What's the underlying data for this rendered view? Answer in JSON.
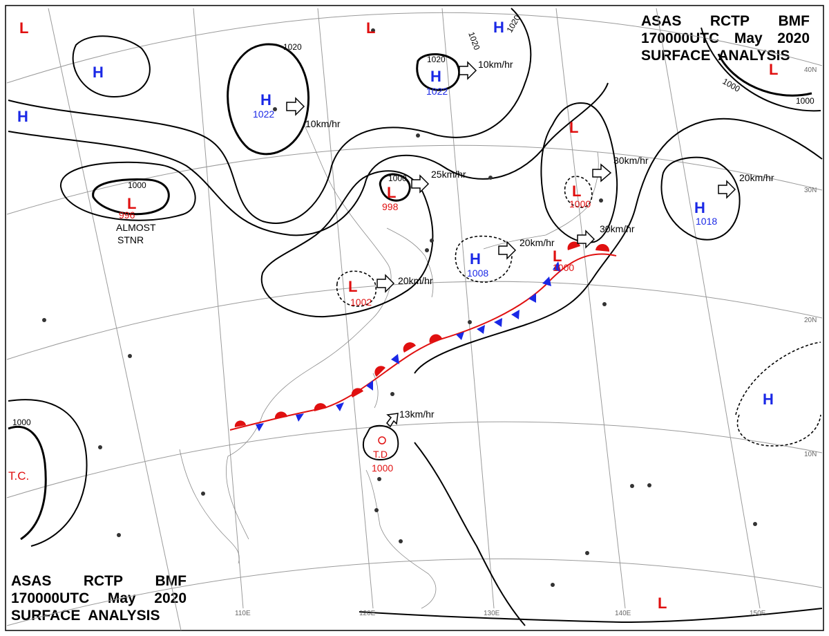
{
  "titles": {
    "top": {
      "line1": [
        "ASAS",
        "RCTP",
        "BMF"
      ],
      "line2": [
        "170000UTC",
        "May",
        "2020"
      ],
      "line3": "SURFACE  ANALYSIS"
    },
    "bottom": {
      "line1": [
        "ASAS",
        "RCTP",
        "BMF"
      ],
      "line2": [
        "170000UTC",
        "May",
        "2020"
      ],
      "line3": "SURFACE  ANALYSIS"
    }
  },
  "longitude_labels": [
    "110E",
    "120E",
    "130E",
    "140E",
    "150E"
  ],
  "latitude_labels": [
    "40N",
    "30N",
    "20N",
    "10N"
  ],
  "pressure_centers": {
    "high_a": {
      "symbol": "H",
      "value": "1022"
    },
    "high_b": {
      "symbol": "H",
      "value": "1022"
    },
    "high_c": {
      "symbol": "H",
      "value": "1008"
    },
    "high_d": {
      "symbol": "H",
      "value": "1018"
    },
    "low_a": {
      "symbol": "L",
      "value": "996"
    },
    "low_b": {
      "symbol": "L",
      "value": "998"
    },
    "low_c": {
      "symbol": "L",
      "value": "1002"
    },
    "low_d": {
      "symbol": "L",
      "value": "1000"
    },
    "low_e": {
      "symbol": "L",
      "value": "1000"
    },
    "td": {
      "symbol": "T.D",
      "value": "1000"
    },
    "tc_label": "T.C.",
    "stationary_note": [
      "ALMOST",
      "STNR"
    ]
  },
  "isobar_labels": [
    "1020",
    "1020",
    "1020",
    "1020",
    "1000",
    "1000",
    "1000",
    "1000",
    "1000"
  ],
  "motion_labels": [
    "10km/hr",
    "10km/hr",
    "25km/hr",
    "30km/hr",
    "30km/hr",
    "20km/hr",
    "20km/hr",
    "20km/hr",
    "13km/hr"
  ],
  "colors": {
    "high": "#1a28e6",
    "low": "#e01010",
    "isobar": "#000000",
    "grid": "#9a9a9a",
    "coast": "#8a8a8a"
  }
}
